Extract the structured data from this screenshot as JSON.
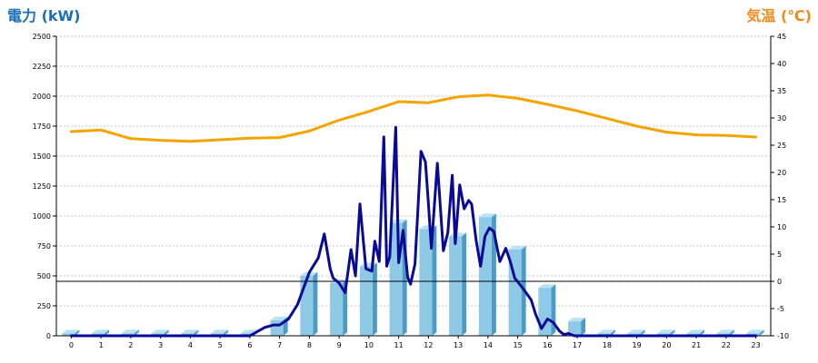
{
  "colors": {
    "left_title": "#1a6fb5",
    "right_title": "#f08a1c",
    "bar_front": "#8ecae6",
    "bar_side": "#4b9bc7",
    "bar_top": "#b9e2f3",
    "power_line": "#0a0a96",
    "temp_line": "#f5a300",
    "grid": "#c8c8c8",
    "zero_line": "#000000"
  },
  "chart_data": {
    "type": "bar",
    "title_left": "電力 (kW)",
    "title_right": "気温 (℃)",
    "grid": true,
    "y_left": {
      "range": [
        0,
        2500
      ],
      "ticks": [
        "0",
        "250",
        "500",
        "750",
        "1000",
        "1250",
        "1500",
        "1750",
        "2000",
        "2250",
        "2500"
      ]
    },
    "y_right": {
      "range": [
        -10,
        45
      ],
      "ticks": [
        "-10",
        "-5",
        "0",
        "5",
        "10",
        "15",
        "20",
        "25",
        "30",
        "35",
        "40",
        "45"
      ]
    },
    "categories": [
      "0",
      "1",
      "2",
      "3",
      "4",
      "5",
      "6",
      "7",
      "8",
      "9",
      "10",
      "11",
      "12",
      "13",
      "14",
      "15",
      "16",
      "17",
      "18",
      "19",
      "20",
      "21",
      "22",
      "23"
    ],
    "series": [
      {
        "kind": "bar",
        "axis": "left",
        "values": [
          20,
          20,
          20,
          20,
          20,
          20,
          20,
          130,
          500,
          440,
          580,
          940,
          890,
          830,
          990,
          720,
          400,
          120,
          20,
          20,
          20,
          20,
          20,
          20
        ]
      },
      {
        "kind": "line",
        "axis": "right",
        "x": [
          0,
          1,
          2,
          3,
          4,
          5,
          6,
          7,
          8,
          9,
          10,
          11,
          12,
          13,
          14,
          15,
          16,
          17,
          18,
          19,
          20,
          21,
          22,
          23
        ],
        "values": [
          27.5,
          27.8,
          26.2,
          25.9,
          25.7,
          26.0,
          26.3,
          26.4,
          27.6,
          29.6,
          31.2,
          33.0,
          32.8,
          33.9,
          34.2,
          33.6,
          32.5,
          31.3,
          29.9,
          28.5,
          27.4,
          26.9,
          26.8,
          26.5
        ]
      },
      {
        "kind": "line",
        "axis": "left",
        "x": [
          0,
          5.5,
          6,
          6.5,
          6.8,
          7,
          7.3,
          7.6,
          8,
          8.3,
          8.5,
          8.7,
          8.8,
          9,
          9.2,
          9.4,
          9.55,
          9.7,
          9.9,
          10.1,
          10.2,
          10.35,
          10.5,
          10.6,
          10.7,
          10.9,
          11,
          11.15,
          11.3,
          11.4,
          11.55,
          11.75,
          11.9,
          12,
          12.1,
          12.3,
          12.5,
          12.65,
          12.8,
          12.9,
          13.05,
          13.2,
          13.35,
          13.45,
          13.6,
          13.75,
          13.9,
          14.05,
          14.2,
          14.4,
          14.6,
          14.75,
          14.9,
          15.1,
          15.25,
          15.45,
          15.6,
          15.8,
          16,
          16.2,
          16.4,
          16.55,
          16.7,
          16.9,
          17.1,
          17.3,
          17.5,
          17.7,
          18,
          19,
          23
        ],
        "values": [
          0,
          0,
          0,
          70,
          90,
          90,
          140,
          260,
          530,
          650,
          850,
          560,
          480,
          440,
          360,
          720,
          500,
          1100,
          560,
          540,
          790,
          620,
          1660,
          580,
          660,
          1740,
          610,
          880,
          490,
          430,
          600,
          1540,
          1450,
          1100,
          730,
          1440,
          710,
          860,
          1340,
          770,
          1260,
          1060,
          1130,
          1100,
          800,
          580,
          830,
          900,
          870,
          620,
          730,
          620,
          480,
          420,
          370,
          300,
          180,
          60,
          140,
          110,
          40,
          10,
          20,
          0,
          0,
          0,
          0,
          0,
          0,
          0,
          0
        ]
      }
    ]
  }
}
